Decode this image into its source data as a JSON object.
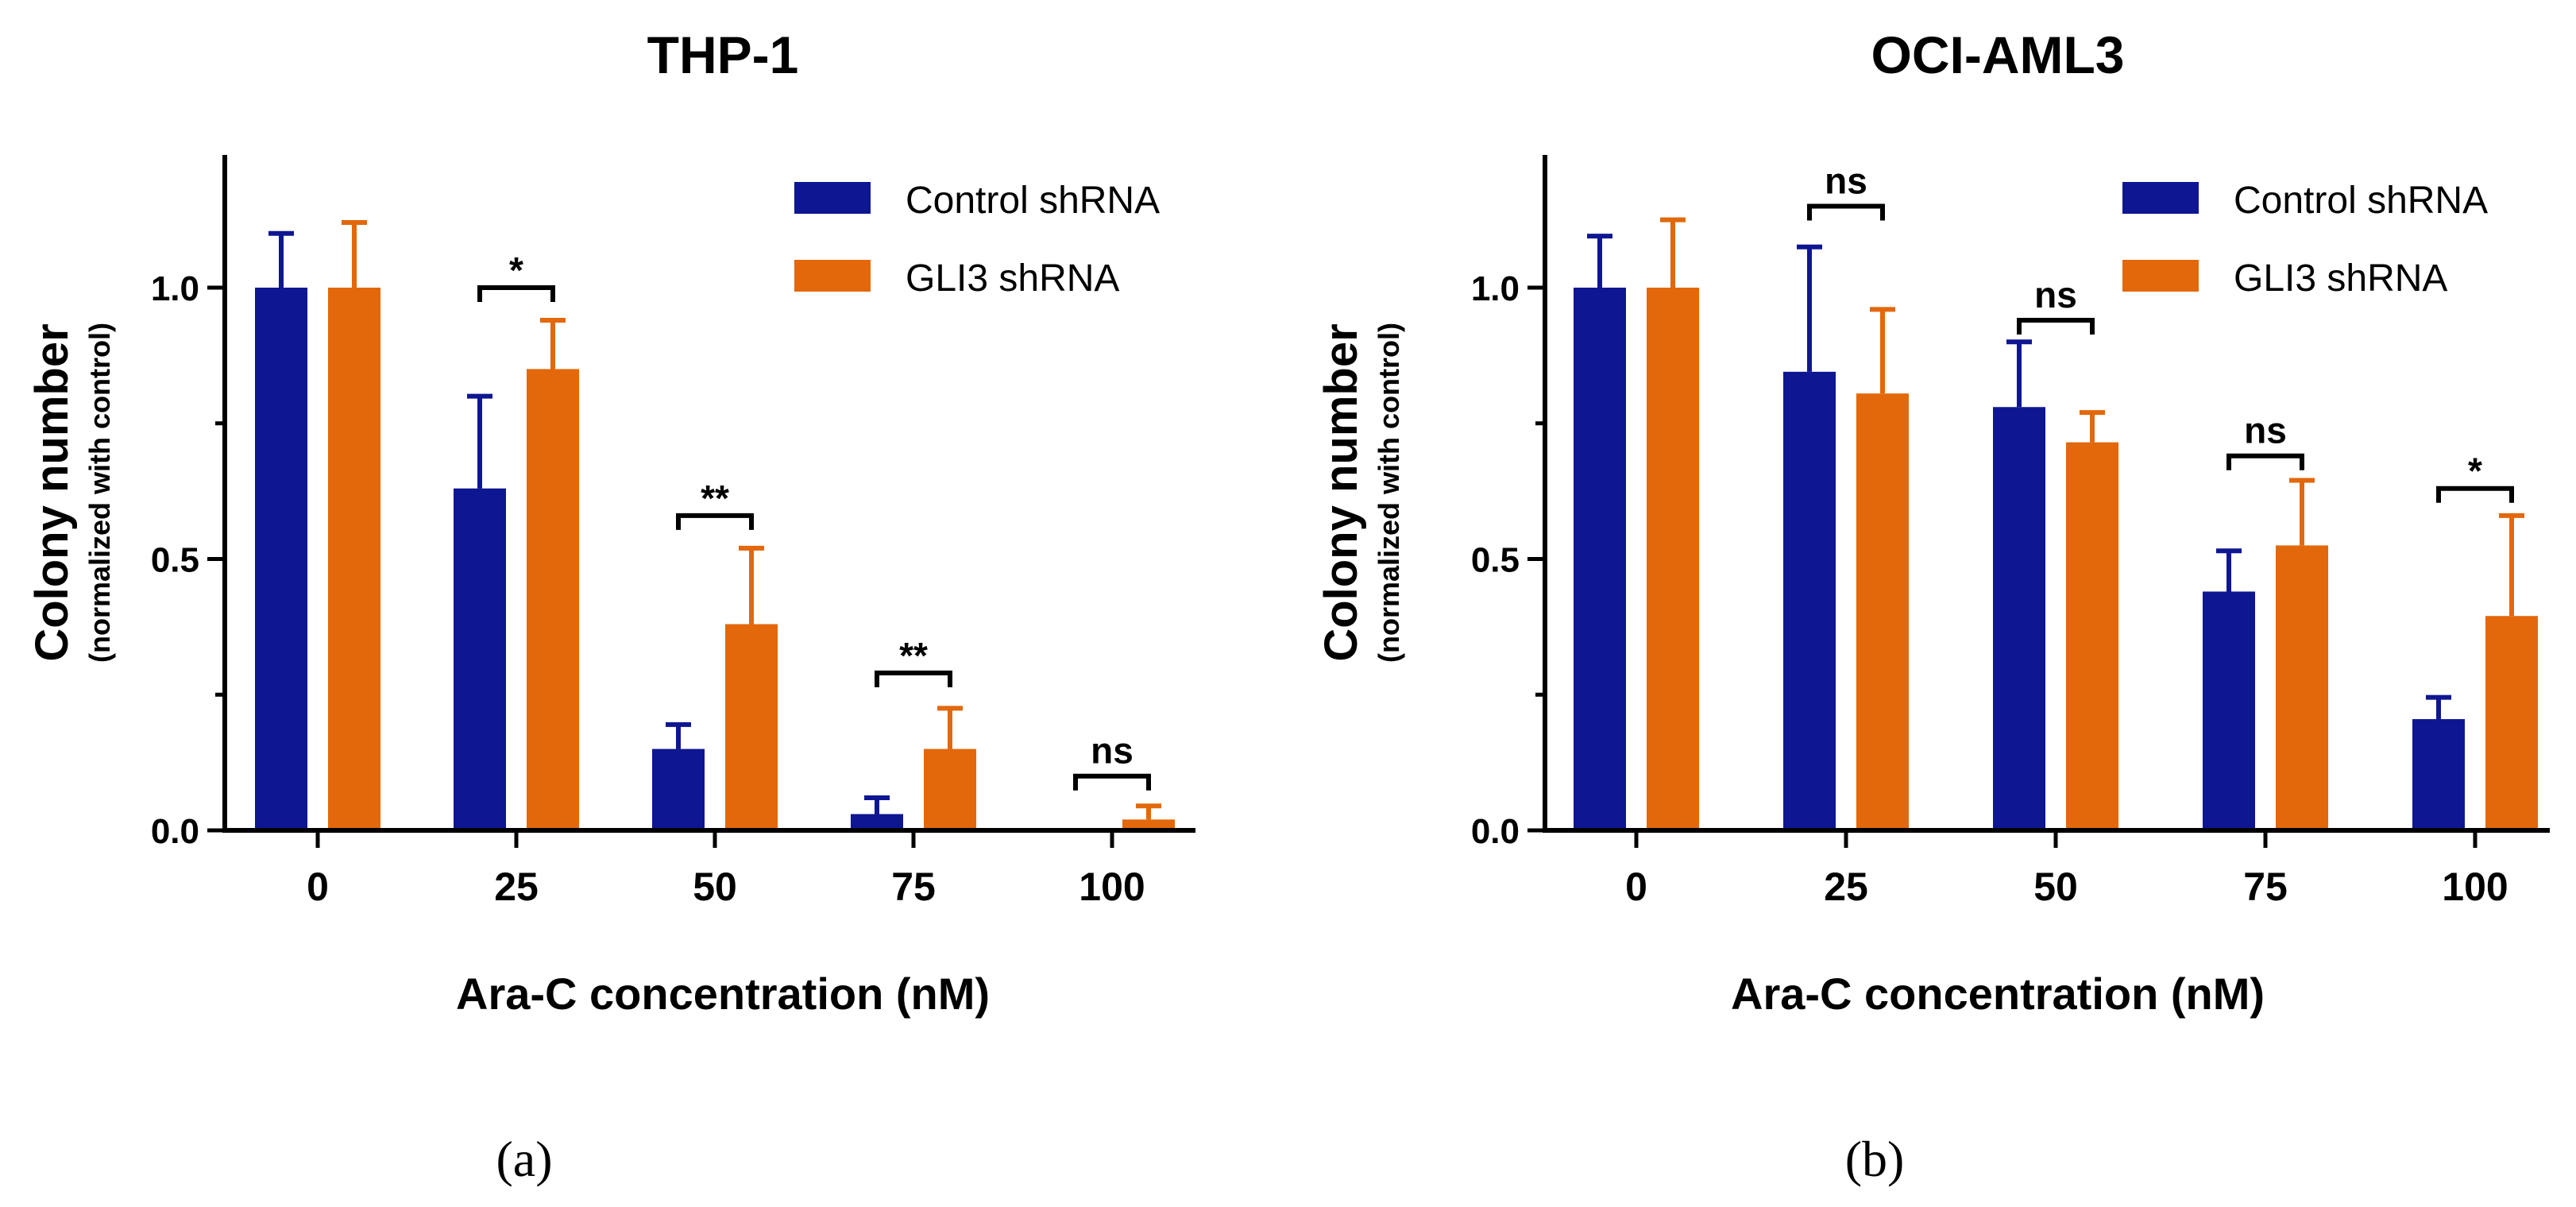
{
  "colors": {
    "control": "#0f1691",
    "gli3": "#e2680b",
    "axis": "#000000"
  },
  "chart_data": [
    {
      "type": "bar",
      "panel_label": "(a)",
      "title": "THP-1",
      "ylabel": "Colony number",
      "ylabel_sub": "(normalized with control)",
      "xlabel": "Ara-C concentration (nM)",
      "ylim": [
        0,
        1.25
      ],
      "yticks": [
        "0.0",
        "0.5",
        "1.0"
      ],
      "ytick_values": [
        0,
        0.5,
        1.0
      ],
      "categories": [
        "0",
        "25",
        "50",
        "75",
        "100"
      ],
      "legend_position": "top-right",
      "series": [
        {
          "name": "Control shRNA",
          "values": [
            1.0,
            0.63,
            0.15,
            0.03,
            0.0
          ],
          "errors": [
            0.1,
            0.17,
            0.045,
            0.03,
            0.0
          ]
        },
        {
          "name": "GLI3 shRNA",
          "values": [
            1.0,
            0.85,
            0.38,
            0.15,
            0.02
          ],
          "errors": [
            0.12,
            0.09,
            0.14,
            0.075,
            0.025
          ]
        }
      ],
      "significance": [
        {
          "category_index": 1,
          "label": "*",
          "y": 1.0
        },
        {
          "category_index": 2,
          "label": "**",
          "y": 0.58
        },
        {
          "category_index": 3,
          "label": "**",
          "y": 0.29
        },
        {
          "category_index": 4,
          "label": "ns",
          "y": 0.1
        }
      ]
    },
    {
      "type": "bar",
      "panel_label": "(b)",
      "title": "OCI-AML3",
      "ylabel": "Colony number",
      "ylabel_sub": "(normalized with control)",
      "xlabel": "Ara-C concentration (nM)",
      "ylim": [
        0,
        1.25
      ],
      "yticks": [
        "0.0",
        "0.5",
        "1.0"
      ],
      "ytick_values": [
        0,
        0.5,
        1.0
      ],
      "categories": [
        "0",
        "25",
        "50",
        "75",
        "100"
      ],
      "legend_position": "top-right",
      "series": [
        {
          "name": "Control shRNA",
          "values": [
            1.0,
            0.845,
            0.78,
            0.44,
            0.205
          ],
          "errors": [
            0.095,
            0.23,
            0.12,
            0.075,
            0.04
          ]
        },
        {
          "name": "GLI3 shRNA",
          "values": [
            1.0,
            0.805,
            0.715,
            0.525,
            0.395
          ],
          "errors": [
            0.125,
            0.155,
            0.055,
            0.12,
            0.185
          ]
        }
      ],
      "significance": [
        {
          "category_index": 1,
          "label": "ns",
          "y": 1.15
        },
        {
          "category_index": 2,
          "label": "ns",
          "y": 0.94
        },
        {
          "category_index": 3,
          "label": "ns",
          "y": 0.69
        },
        {
          "category_index": 4,
          "label": "*",
          "y": 0.63
        }
      ]
    }
  ]
}
